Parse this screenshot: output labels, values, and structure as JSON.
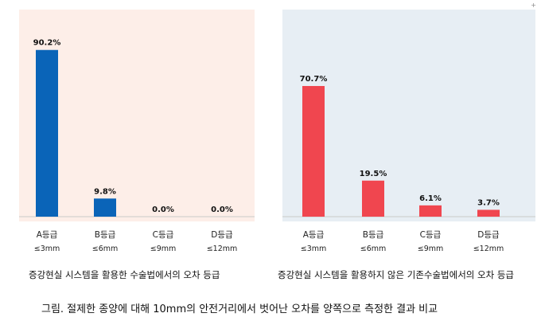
{
  "chart_data": [
    {
      "type": "bar",
      "categories": [
        "A등급",
        "B등급",
        "C등급",
        "D등급"
      ],
      "category_subs": [
        "≤3mm",
        "≤6mm",
        "≤9mm",
        "≤12mm"
      ],
      "values": [
        90.2,
        9.8,
        0.0,
        0.0
      ],
      "value_labels": [
        "90.2%",
        "9.8%",
        "0.0%",
        "0.0%"
      ],
      "ylim": [
        0,
        100
      ],
      "bar_color": "#0a64b8",
      "background": "#fdeee8",
      "caption": "증강현실 시스템을 활용한 수술법에서의 오차 등급"
    },
    {
      "type": "bar",
      "categories": [
        "A등급",
        "B등급",
        "C등급",
        "D등급"
      ],
      "category_subs": [
        "≤3mm",
        "≤6mm",
        "≤9mm",
        "≤12mm"
      ],
      "values": [
        70.7,
        19.5,
        6.1,
        3.7
      ],
      "value_labels": [
        "70.7%",
        "19.5%",
        "6.1%",
        "3.7%"
      ],
      "ylim": [
        0,
        100
      ],
      "bar_color": "#f0464f",
      "background": "#e7eef4",
      "caption": "증강현실 시스템을 활용하지 않은 기존수술법에서의 오차 등급"
    }
  ],
  "figure_caption": "그림. 절제한 종양에 대해 10mm의 안전거리에서 벗어난 오차를 양쪽으로 측정한 결과 비교",
  "corner_mark": "+"
}
